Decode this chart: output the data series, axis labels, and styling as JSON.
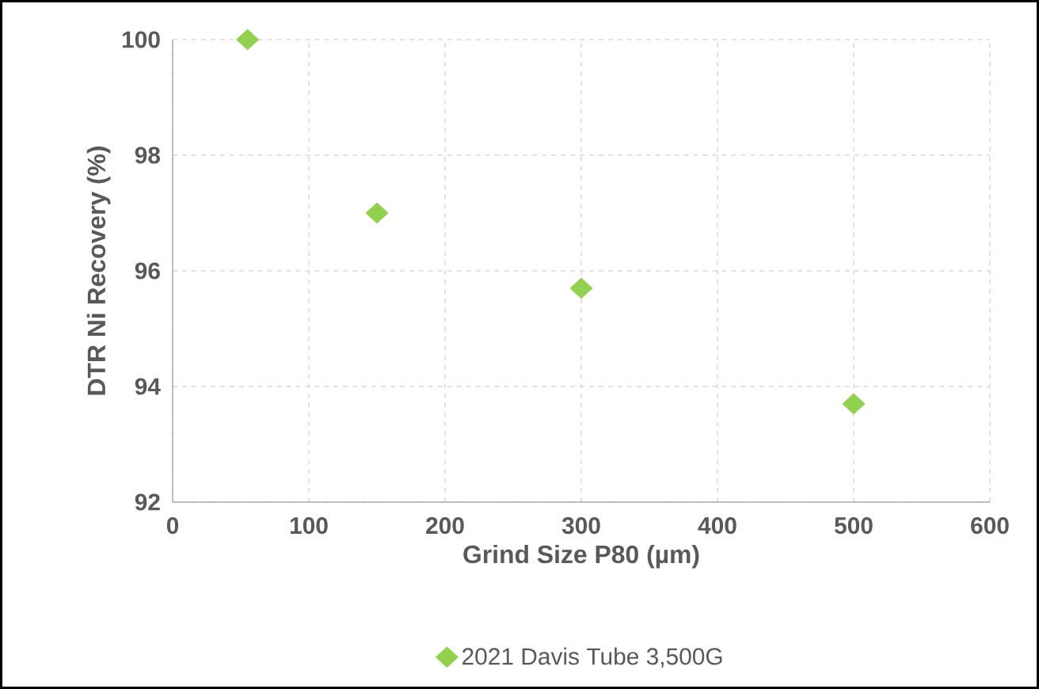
{
  "chart_data": {
    "type": "scatter",
    "xlabel": "Grind Size P80 (µm)",
    "ylabel": "DTR Ni Recovery (%)",
    "x": [
      55,
      150,
      300,
      500
    ],
    "series": [
      {
        "name": "2021 Davis Tube 3,500G",
        "color": "#92d050",
        "values": [
          100,
          97.0,
          95.7,
          93.7
        ]
      }
    ],
    "xlim": [
      0,
      600
    ],
    "xticks": [
      0,
      100,
      200,
      300,
      400,
      500,
      600
    ],
    "ylim": [
      92,
      100
    ],
    "yticks": [
      92,
      94,
      96,
      98,
      100
    ],
    "grid": true,
    "legend": "bottom",
    "marker": "diamond"
  }
}
